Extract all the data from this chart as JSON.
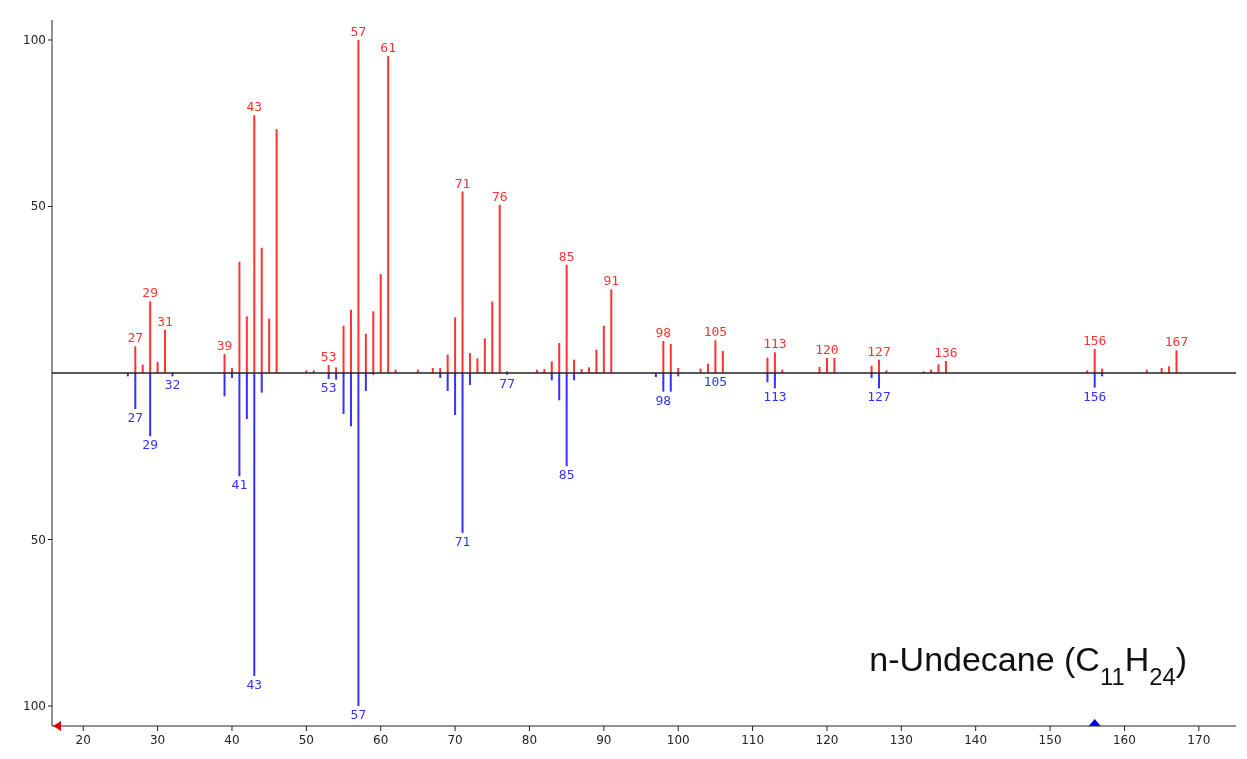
{
  "chart_data": {
    "type": "bar",
    "xlim": [
      15.8,
      175
    ],
    "ylim": [
      -106,
      106
    ],
    "xticks": [
      20,
      30,
      40,
      50,
      60,
      70,
      80,
      90,
      100,
      110,
      120,
      130,
      140,
      150,
      160,
      170
    ],
    "yticks": [
      {
        "value": -100,
        "label": "100"
      },
      {
        "value": -50,
        "label": "50"
      },
      50,
      100
    ],
    "grid": false,
    "annotations": [
      "n-Undecane (C$_{11}$H$_{24}$)",
      {
        "text": "27",
        "x": 27,
        "y": 8
      },
      {
        "text": "29",
        "x": 29,
        "y": 21.5
      },
      {
        "text": "31",
        "x": 31,
        "y": 13
      },
      {
        "text": "39",
        "x": 39,
        "y": 5.7
      },
      {
        "text": "43",
        "x": 43,
        "y": 77.4
      },
      {
        "text": "53",
        "x": 53,
        "y": 2.4
      },
      {
        "text": "57",
        "x": 57,
        "y": 100
      },
      {
        "text": "61",
        "x": 61,
        "y": 95.2
      },
      {
        "text": "71",
        "x": 71,
        "y": 54.5
      },
      {
        "text": "76",
        "x": 76,
        "y": 50.5
      },
      {
        "text": "85",
        "x": 85,
        "y": 32.5
      },
      {
        "text": "91",
        "x": 91,
        "y": 25.1
      },
      {
        "text": "98",
        "x": 98,
        "y": 9.6
      },
      {
        "text": "105",
        "x": 105,
        "y": 9.8
      },
      {
        "text": "113",
        "x": 113,
        "y": 6.2
      },
      {
        "text": "120",
        "x": 120,
        "y": 4.5
      },
      {
        "text": "127",
        "x": 127,
        "y": 4
      },
      {
        "text": "136",
        "x": 136,
        "y": 3.6
      },
      {
        "text": "156",
        "x": 156,
        "y": 7.2
      },
      {
        "text": "167",
        "x": 167,
        "y": 6.8
      },
      {
        "text": "27",
        "x": 27,
        "y": -10.8
      },
      {
        "text": "29",
        "x": 29,
        "y": -19
      },
      {
        "text": "32",
        "x": 32,
        "y": -1
      },
      {
        "text": "41",
        "x": 41,
        "y": -31
      },
      {
        "text": "43",
        "x": 43,
        "y": -91
      },
      {
        "text": "53",
        "x": 53,
        "y": -1.8
      },
      {
        "text": "57",
        "x": 57,
        "y": -100
      },
      {
        "text": "71",
        "x": 71,
        "y": -48
      },
      {
        "text": "77",
        "x": 77,
        "y": -0.5
      },
      {
        "text": "85",
        "x": 85,
        "y": -28
      },
      {
        "text": "98",
        "x": 98,
        "y": -5.6
      },
      {
        "text": "105",
        "x": 105,
        "y": 0
      },
      {
        "text": "113",
        "x": 113,
        "y": -4.6
      },
      {
        "text": "127",
        "x": 127,
        "y": -4.6
      },
      {
        "text": "156",
        "x": 156,
        "y": -4.4
      }
    ],
    "series": [
      {
        "color": "#ff3333",
        "x": [
          27,
          28,
          29,
          30,
          31,
          39,
          40,
          41,
          42,
          43,
          44,
          45,
          46,
          50,
          51,
          53,
          54,
          55,
          56,
          57,
          58,
          59,
          60,
          61,
          62,
          65,
          67,
          68,
          69,
          70,
          71,
          72,
          73,
          74,
          75,
          76,
          77,
          81,
          82,
          83,
          84,
          85,
          86,
          87,
          88,
          89,
          90,
          91,
          98,
          99,
          100,
          103,
          104,
          105,
          106,
          112,
          113,
          114,
          119,
          120,
          121,
          126,
          127,
          128,
          133,
          134,
          135,
          136,
          155,
          156,
          157,
          163,
          165,
          166,
          167
        ],
        "values": [
          8,
          2.5,
          21.5,
          3.3,
          13,
          5.7,
          1.5,
          33.4,
          17,
          77.4,
          37.6,
          16.3,
          73.2,
          0.8,
          0.8,
          2.4,
          1.7,
          14.2,
          19,
          100,
          11.8,
          18.5,
          29.7,
          95.2,
          1,
          1,
          1.5,
          1.5,
          5.5,
          16.7,
          54.5,
          6,
          4.4,
          10.4,
          21.5,
          50.5,
          0.5,
          1,
          1.2,
          3.5,
          9,
          32.5,
          4,
          1.2,
          1.7,
          7,
          14.2,
          25.1,
          9.6,
          8.7,
          1.5,
          1.3,
          2.8,
          9.8,
          6.6,
          4.6,
          6.2,
          1,
          1.8,
          4.5,
          4.5,
          2.2,
          4,
          0.8,
          0.5,
          1,
          2.6,
          3.6,
          0.8,
          7.2,
          1.3,
          1,
          1.5,
          2,
          6.8
        ]
      },
      {
        "color": "#3333ff",
        "x": [
          26,
          27,
          29,
          32,
          39,
          40,
          41,
          42,
          43,
          44,
          53,
          54,
          55,
          56,
          57,
          58,
          59,
          68,
          69,
          70,
          71,
          72,
          77,
          83,
          84,
          85,
          86,
          97,
          98,
          99,
          100,
          112,
          113,
          126,
          127,
          156,
          157
        ],
        "values": [
          -1,
          -10.8,
          -19,
          -1,
          -7,
          -1.5,
          -31,
          -13.8,
          -91,
          -5.9,
          -1.8,
          -2,
          -12.3,
          -16,
          -100,
          -5.4,
          -0.5,
          -1.5,
          -5.4,
          -12.6,
          -48,
          -3.6,
          -0.5,
          -2.2,
          -8.2,
          -28,
          -2.2,
          -1.2,
          -5.6,
          -5.6,
          -1,
          -2.8,
          -4.6,
          -1.5,
          -4.6,
          -4.4,
          -1
        ]
      }
    ]
  }
}
